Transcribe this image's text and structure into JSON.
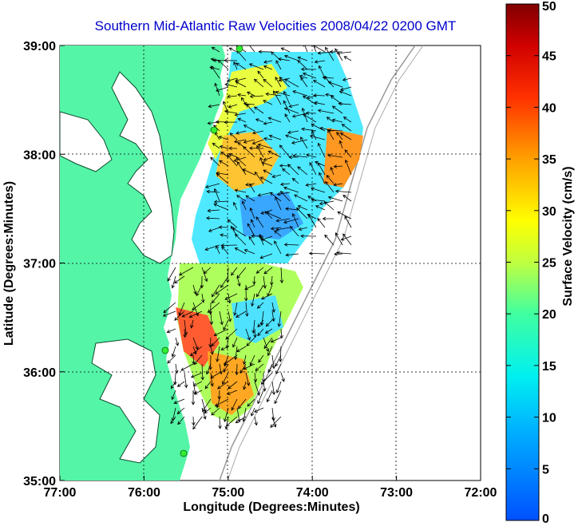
{
  "title": "Southern Mid-Atlantic Raw Velocities 2008/04/22 0200 GMT",
  "x_axis": {
    "label": "Longitude (Degrees:Minutes)",
    "ticks": [
      "77:00",
      "76:00",
      "75:00",
      "74:00",
      "73:00",
      "72:00"
    ]
  },
  "y_axis": {
    "label": "Latitude (Degrees:Minutes)",
    "ticks": [
      "39:00",
      "38:00",
      "37:00",
      "36:00",
      "35:00"
    ]
  },
  "colorbar": {
    "label": "Surface Velocity (cm/s)",
    "ticks": [
      "50",
      "45",
      "40",
      "35",
      "30",
      "25",
      "20",
      "15",
      "10",
      "5",
      "0"
    ],
    "min": 0,
    "max": 50
  },
  "colors": {
    "land": "#55f5a8",
    "title": "#0000cc",
    "vectors": "#000000",
    "stations": "#33ee33"
  }
}
